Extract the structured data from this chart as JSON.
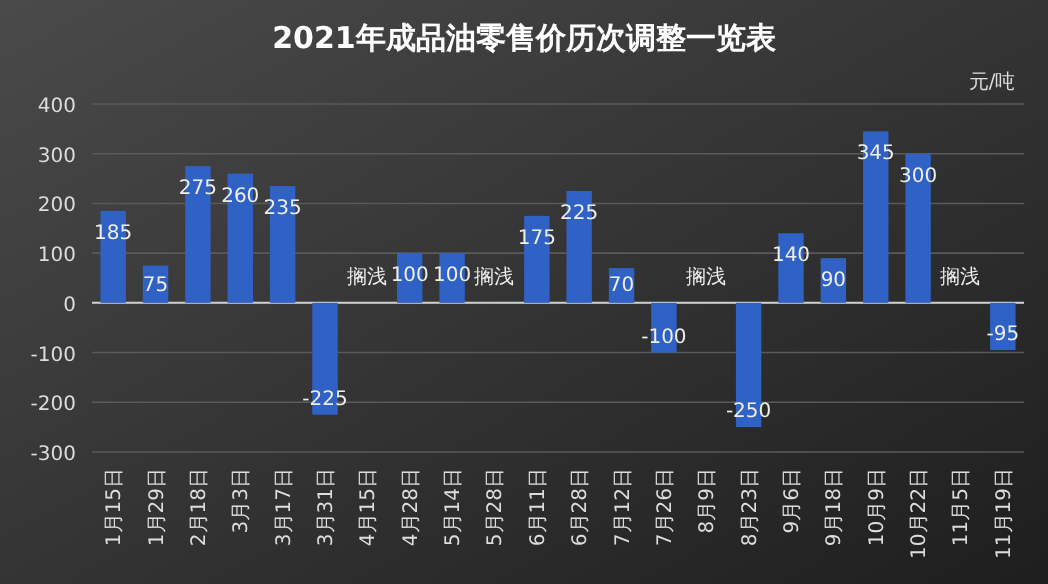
{
  "chart_data": {
    "type": "bar",
    "title": "2021年成品油零售价历次调整一览表",
    "ylabel": "元/吨",
    "categories": [
      "1月15日",
      "1月29日",
      "2月18日",
      "3月3日",
      "3月17日",
      "3月31日",
      "4月15日",
      "4月28日",
      "5月14日",
      "5月28日",
      "6月11日",
      "6月28日",
      "7月12日",
      "7月26日",
      "8月9日",
      "8月23日",
      "9月6日",
      "9月18日",
      "10月9日",
      "10月22日",
      "11月5日",
      "11月19日"
    ],
    "values": [
      185,
      75,
      275,
      260,
      235,
      -225,
      null,
      100,
      100,
      null,
      175,
      225,
      70,
      -100,
      null,
      -250,
      140,
      90,
      345,
      300,
      null,
      -95
    ],
    "value_labels": [
      "185",
      "75",
      "275",
      "260",
      "235",
      "-225",
      "搁浅",
      "100",
      "100",
      "搁浅",
      "175",
      "225",
      "70",
      "-100",
      "搁浅",
      "-250",
      "140",
      "90",
      "345",
      "300",
      "搁浅",
      "-95"
    ],
    "color": "#2f62c4",
    "ylim": [
      -300,
      400
    ],
    "yticks": [
      -300,
      -200,
      -100,
      0,
      100,
      200,
      300,
      400
    ],
    "grid": "y"
  }
}
